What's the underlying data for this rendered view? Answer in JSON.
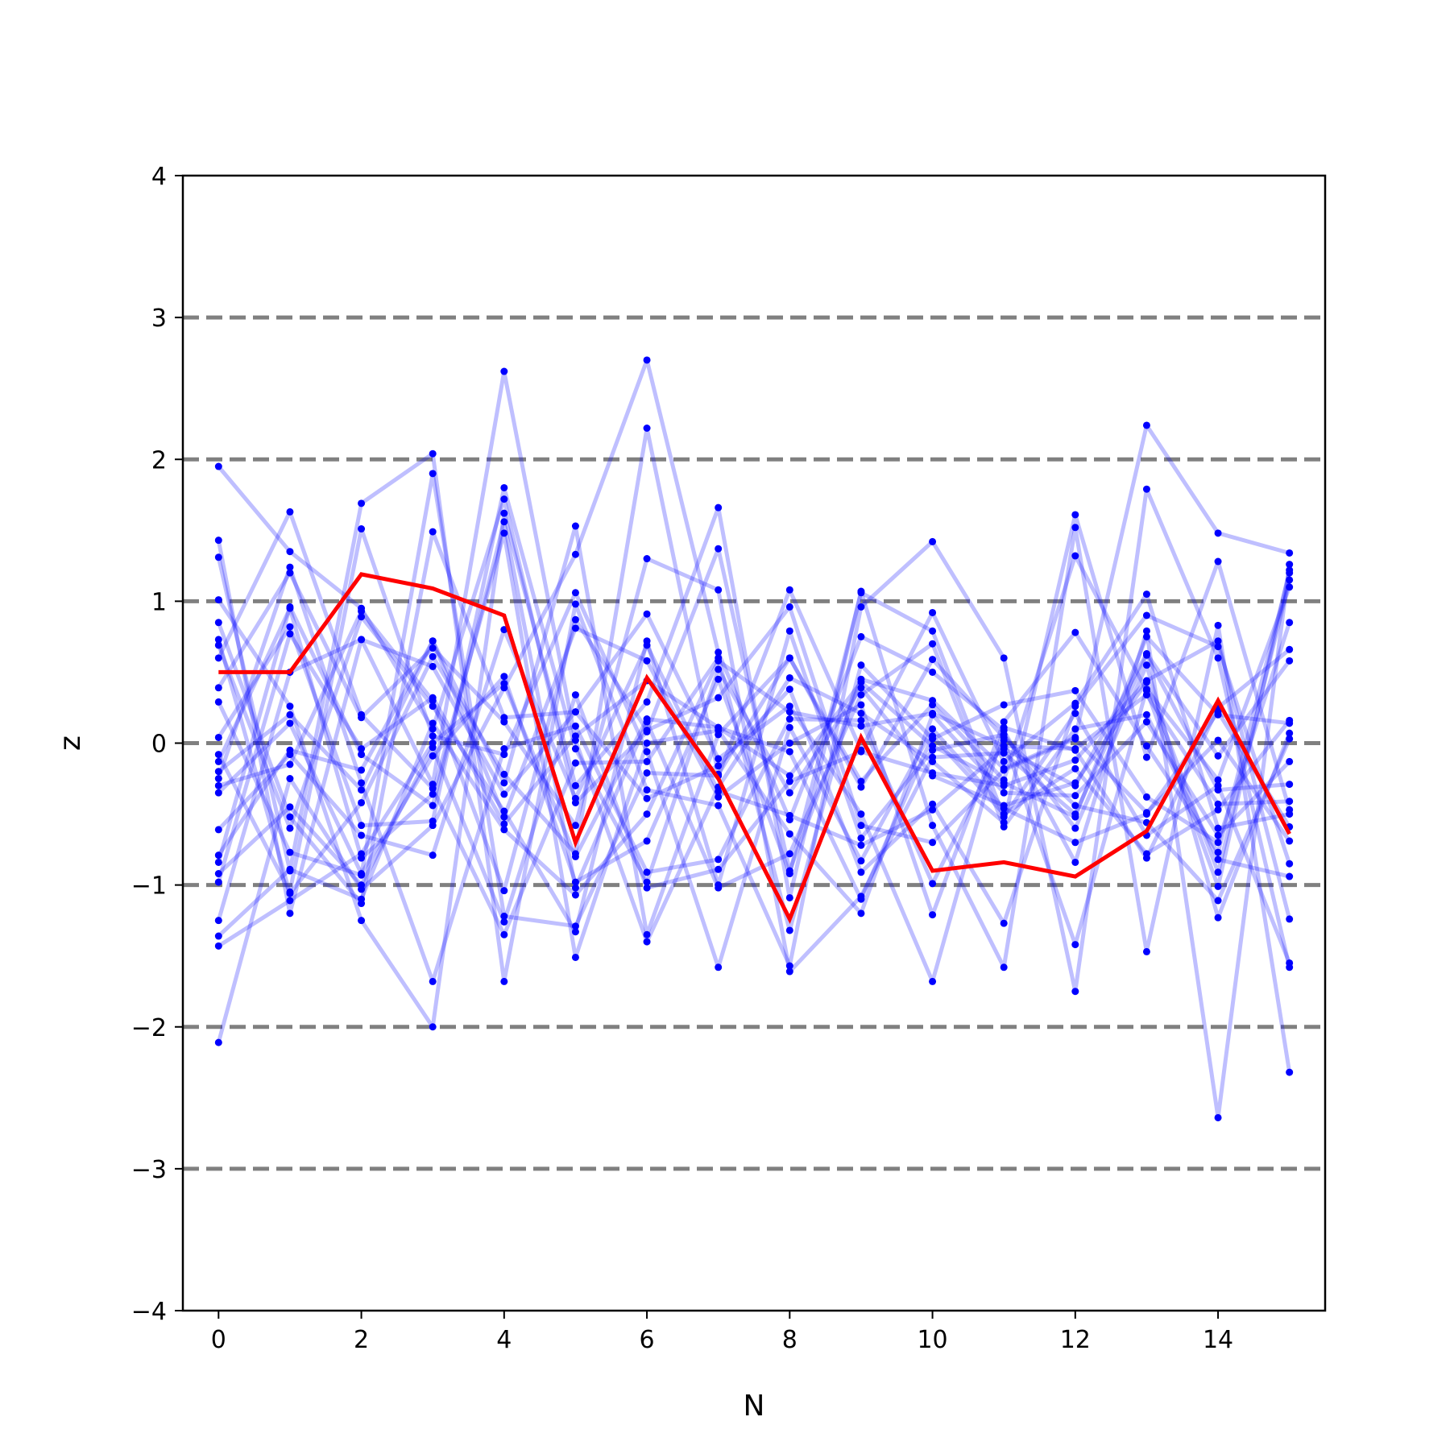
{
  "chart_data": {
    "type": "line",
    "title": "",
    "xlabel": "N",
    "ylabel": "z",
    "xlim": [
      -0.5,
      15.5
    ],
    "ylim": [
      -4,
      4
    ],
    "x_ticks": [
      0,
      2,
      4,
      6,
      8,
      10,
      12,
      14
    ],
    "y_ticks": [
      -4,
      -3,
      -2,
      -1,
      0,
      1,
      2,
      3,
      4
    ],
    "x_tick_labels": [
      "0",
      "2",
      "4",
      "6",
      "8",
      "10",
      "12",
      "14"
    ],
    "y_tick_labels": [
      "−4",
      "−3",
      "−2",
      "−1",
      "0",
      "1",
      "2",
      "3",
      "4"
    ],
    "reference_lines_y": [
      -3,
      -2,
      -1,
      0,
      1,
      2,
      3
    ],
    "x": [
      0,
      1,
      2,
      3,
      4,
      5,
      6,
      7,
      8,
      9,
      10,
      11,
      12,
      13,
      14,
      15
    ],
    "colors": {
      "background_series": "#0000ff",
      "highlight_series": "#ff0000",
      "reference_line": "#808080",
      "axes": "#000000"
    },
    "highlight_series": {
      "values": [
        0.5,
        0.5,
        1.19,
        1.09,
        0.9,
        -0.7,
        0.46,
        -0.25,
        -1.24,
        0.04,
        -0.9,
        -0.84,
        -0.94,
        -0.62,
        0.3,
        -0.64
      ]
    },
    "background_series": [
      {
        "values": [
          1.95,
          1.35,
          0.95,
          0.1,
          1.72,
          -0.42,
          0.08,
          1.37,
          -0.9,
          0.45,
          0.3,
          -0.18,
          0.04,
          2.24,
          1.48,
          1.34
        ]
      },
      {
        "values": [
          -2.11,
          -0.25,
          -1.03,
          -0.58,
          0.39,
          1.33,
          2.7,
          0.64,
          -0.54,
          0.75,
          0.5,
          0.09,
          -0.84,
          0.79,
          -2.64,
          1.26
        ]
      },
      {
        "values": [
          1.43,
          -1.2,
          0.73,
          -0.29,
          2.62,
          0.02,
          -1.4,
          -0.31,
          0.46,
          0.21,
          -0.13,
          -0.56,
          1.61,
          -0.1,
          1.28,
          -0.47
        ]
      },
      {
        "values": [
          1.31,
          -0.9,
          1.69,
          2.04,
          -1.68,
          0.98,
          -0.33,
          -0.44,
          -1.57,
          0.96,
          1.42,
          0.6,
          -1.75,
          1.79,
          0.6,
          -1.58
        ]
      },
      {
        "values": [
          1.01,
          0.26,
          -1.25,
          -2.0,
          1.62,
          -0.3,
          0.29,
          1.66,
          -1.09,
          1.07,
          -0.58,
          -1.58,
          1.52,
          -1.47,
          0.83,
          -2.32
        ]
      },
      {
        "values": [
          0.85,
          -0.52,
          -1.13,
          1.49,
          0.18,
          0.22,
          0.91,
          -0.11,
          0.26,
          -0.5,
          -1.68,
          0.11,
          -0.05,
          -0.81,
          0.25,
          0.66
        ]
      },
      {
        "values": [
          0.73,
          -1.06,
          -0.42,
          0.61,
          -0.22,
          -0.78,
          2.22,
          -0.22,
          0.6,
          -0.27,
          0.27,
          -0.26,
          1.32,
          0.37,
          -1.01,
          1.22
        ]
      },
      {
        "values": [
          0.69,
          -0.6,
          0.89,
          0.26,
          -0.48,
          -1.33,
          0.72,
          -1.0,
          0.79,
          -0.67,
          -0.05,
          0.06,
          -0.6,
          0.55,
          -1.23,
          0.07
        ]
      },
      {
        "values": [
          0.6,
          1.63,
          0.2,
          -0.32,
          -1.35,
          -0.14,
          -0.13,
          0.6,
          -1.32,
          0.55,
          0.03,
          0.27,
          0.37,
          -0.38,
          -0.7,
          0.85
        ]
      },
      {
        "values": [
          0.39,
          1.2,
          0.18,
          0.67,
          0.15,
          -0.58,
          1.3,
          1.08,
          -1.61,
          -1.08,
          -0.1,
          -0.07,
          -0.5,
          0.62,
          -0.33,
          -0.29
        ]
      },
      {
        "values": [
          0.29,
          -0.77,
          -0.93,
          1.9,
          -1.22,
          -1.29,
          -0.21,
          -0.23,
          1.08,
          -0.05,
          0.92,
          -0.13,
          0.28,
          1.05,
          -0.6,
          -0.5
        ]
      },
      {
        "values": [
          0.04,
          0.82,
          -0.58,
          -0.55,
          1.8,
          -0.04,
          -0.98,
          0.52,
          -0.35,
          0.39,
          -0.23,
          -0.44,
          -0.28,
          0.43,
          -0.91,
          1.15
        ]
      },
      {
        "values": [
          -0.08,
          -1.05,
          1.51,
          0.05,
          -0.08,
          1.06,
          -0.06,
          -1.58,
          0.11,
          -0.83,
          0.1,
          -0.46,
          -0.7,
          -0.5,
          0.22,
          -0.59
        ]
      },
      {
        "values": [
          -0.13,
          0.95,
          -0.81,
          -0.36,
          1.48,
          -1.51,
          0.0,
          0.09,
          -0.64,
          -1.2,
          0.2,
          -0.35,
          -0.37,
          0.15,
          -0.65,
          -0.13
        ]
      },
      {
        "values": [
          -0.2,
          0.2,
          -0.33,
          0.72,
          -0.52,
          0.81,
          0.58,
          -0.38,
          0.0,
          0.27,
          -1.21,
          0.15,
          0.78,
          -0.02,
          -0.77,
          1.2
        ]
      },
      {
        "values": [
          -0.25,
          1.24,
          -0.28,
          -1.68,
          -0.04,
          0.12,
          -0.91,
          -0.82,
          0.17,
          0.16,
          -0.99,
          0.02,
          -1.42,
          0.38,
          -0.26,
          1.1
        ]
      },
      {
        "values": [
          -0.3,
          -0.15,
          0.93,
          0.3,
          -1.04,
          0.87,
          0.09,
          0.32,
          0.96,
          -0.58,
          -0.7,
          -0.19,
          0.03,
          -0.49,
          0.02,
          -0.69
        ]
      },
      {
        "values": [
          -0.35,
          0.14,
          -0.92,
          -0.09,
          0.47,
          -0.98,
          -0.69,
          0.45,
          -0.92,
          1.06,
          0.79,
          -0.52,
          0.21,
          -0.65,
          -0.3,
          -1.55
        ]
      },
      {
        "values": [
          -0.61,
          -0.08,
          -0.65,
          -0.79,
          0.8,
          -0.39,
          0.69,
          -0.34,
          -0.51,
          -0.72,
          -0.47,
          -0.04,
          -0.3,
          0.63,
          -0.09,
          0.58
        ]
      },
      {
        "values": [
          -0.79,
          -0.05,
          -0.19,
          0.72,
          -0.28,
          1.53,
          -1.35,
          0.06,
          0.6,
          -0.31,
          0.59,
          0.04,
          -0.44,
          -0.56,
          -1.11,
          0.03
        ]
      },
      {
        "values": [
          -0.84,
          0.96,
          -0.08,
          -0.44,
          1.56,
          -1.02,
          0.15,
          -1.02,
          -0.78,
          0.34,
          0.7,
          -0.59,
          0.1,
          0.2,
          -0.82,
          -0.94
        ]
      },
      {
        "values": [
          -0.92,
          -0.45,
          -1.0,
          -0.03,
          -1.26,
          0.34,
          -1.02,
          -0.89,
          -0.27,
          -0.06,
          -0.21,
          -0.3,
          -0.12,
          0.44,
          0.72,
          -1.24
        ]
      },
      {
        "values": [
          -0.98,
          0.77,
          -0.04,
          0.32,
          -0.57,
          0.05,
          0.44,
          0.11,
          -0.06,
          -1.1,
          0.05,
          -0.5,
          -0.18,
          -0.78,
          -0.47,
          0.16
        ]
      },
      {
        "values": [
          -1.25,
          0.5,
          0.73,
          0.54,
          -0.36,
          0.22,
          -0.39,
          -0.16,
          0.38,
          -0.91,
          -0.43,
          -1.27,
          0.26,
          0.9,
          0.68,
          -0.85
        ]
      },
      {
        "values": [
          -1.36,
          -0.89,
          -1.1,
          0.14,
          -0.61,
          -1.07,
          -0.5,
          0.58,
          0.22,
          0.12,
          0.21,
          -0.02,
          -0.04,
          0.34,
          -0.43,
          -0.41
        ]
      },
      {
        "values": [
          -1.43,
          -1.11,
          -0.78,
          0.0,
          0.42,
          -0.8,
          0.17,
          0.11,
          -0.23,
          0.43,
          -0.02,
          -0.28,
          -0.52,
          0.75,
          0.2,
          0.14
        ]
      }
    ]
  }
}
